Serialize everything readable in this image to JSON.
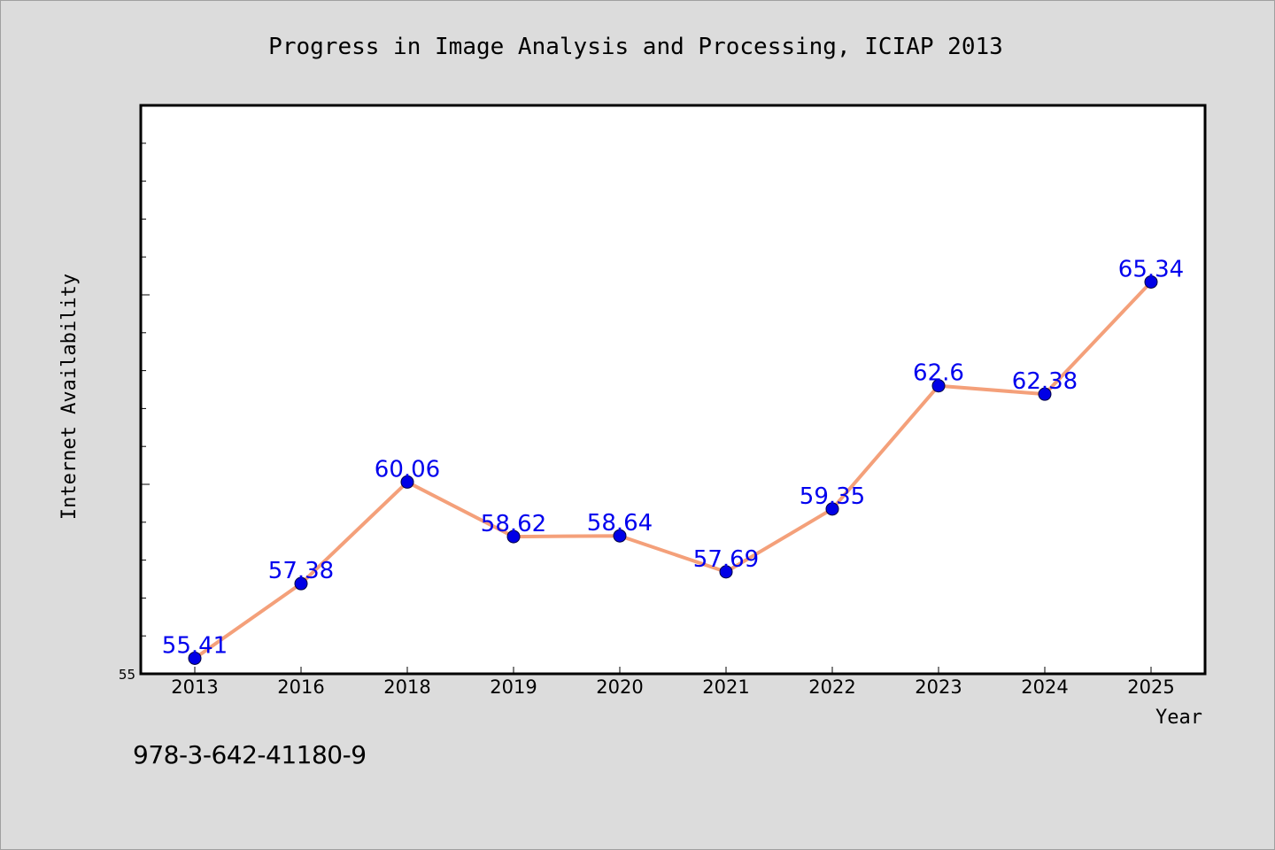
{
  "chart_data": {
    "type": "line",
    "title": "Progress in Image Analysis and Processing, ICIAP 2013",
    "xlabel": "Year",
    "ylabel": "Internet Availability",
    "categories": [
      "2013",
      "2016",
      "2018",
      "2019",
      "2020",
      "2021",
      "2022",
      "2023",
      "2024",
      "2025"
    ],
    "series": [
      {
        "values": [
          55.41,
          57.38,
          60.06,
          58.62,
          58.64,
          57.69,
          59.35,
          62.6,
          62.38,
          65.34
        ],
        "data_labels": [
          "55.41",
          "57.38",
          "60.06",
          "58.62",
          "58.64",
          "57.69",
          "59.35",
          "62.6",
          "62.38",
          "65.34"
        ],
        "line_color": "#f4a07a",
        "marker_color": "#0000e6"
      }
    ],
    "ylim": [
      55,
      70
    ],
    "y_tick_labels": [
      "55"
    ],
    "grid": false,
    "legend": "none",
    "label_color": "#0000ee"
  },
  "footer": {
    "isbn": "978-3-642-41180-9"
  }
}
